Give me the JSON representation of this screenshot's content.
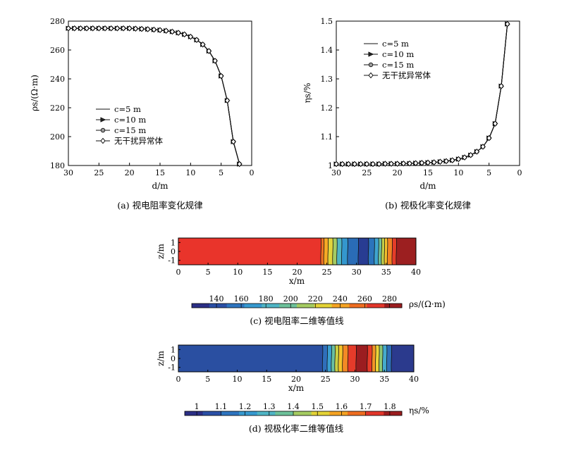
{
  "chart_data": [
    {
      "id": "a",
      "type": "line",
      "caption": "(a) 视电阻率变化规律",
      "xlabel": "d/m",
      "ylabel": "ρs/(Ω·m)",
      "xlim": [
        30,
        0
      ],
      "ylim": [
        180,
        280
      ],
      "xticks": [
        "30",
        "25",
        "20",
        "15",
        "10",
        "5",
        "0"
      ],
      "yticks": [
        "280",
        "260",
        "240",
        "220",
        "200",
        "180"
      ],
      "legend_position": "lower-left",
      "x": [
        30,
        29,
        28,
        27,
        26,
        25,
        24,
        23,
        22,
        21,
        20,
        19,
        18,
        17,
        16,
        15,
        14,
        13,
        12,
        11,
        10,
        9,
        8,
        7,
        6,
        5,
        4,
        3,
        2
      ],
      "series": [
        {
          "name": "c=5 m",
          "values": [
            275,
            275,
            275,
            275,
            275,
            275,
            275,
            275,
            275,
            275,
            275,
            274.8,
            274.6,
            274.4,
            274.1,
            273.8,
            273.3,
            272.7,
            271.9,
            270.8,
            269.2,
            267,
            263.8,
            259.3,
            252.5,
            242,
            225,
            196.5,
            181
          ],
          "marker": "none"
        },
        {
          "name": "c=10 m",
          "values": [
            275,
            275,
            275,
            275,
            275,
            275,
            275,
            275,
            275,
            275,
            275,
            274.8,
            274.6,
            274.4,
            274.1,
            273.8,
            273.3,
            272.7,
            271.9,
            270.8,
            269.2,
            267,
            263.8,
            259.3,
            252.5,
            242,
            225,
            196.5,
            181
          ],
          "marker": "triangle"
        },
        {
          "name": "c=15 m",
          "values": [
            275,
            275,
            275,
            275,
            275,
            275,
            275,
            275,
            275,
            275,
            275,
            274.8,
            274.6,
            274.4,
            274.1,
            273.8,
            273.3,
            272.7,
            271.9,
            270.8,
            269.2,
            267,
            263.8,
            259.3,
            252.5,
            242,
            225,
            196.5,
            181
          ],
          "marker": "circle"
        },
        {
          "name": "无干扰异常体",
          "values": [
            275,
            275,
            275,
            275,
            275,
            275,
            275,
            275,
            275,
            275,
            275,
            274.8,
            274.6,
            274.4,
            274.1,
            273.8,
            273.3,
            272.7,
            271.9,
            270.8,
            269.2,
            267,
            263.8,
            259.3,
            252.5,
            242,
            225,
            196.5,
            181
          ],
          "marker": "diamond"
        }
      ]
    },
    {
      "id": "b",
      "type": "line",
      "caption": "(b) 视极化率变化规律",
      "xlabel": "d/m",
      "ylabel": "ηs/%",
      "xlim": [
        30,
        0
      ],
      "ylim": [
        1,
        1.5
      ],
      "xticks": [
        "30",
        "25",
        "20",
        "15",
        "10",
        "5",
        "0"
      ],
      "yticks": [
        "1.5",
        "1.4",
        "1.3",
        "1.2",
        "1.1",
        "1"
      ],
      "legend_position": "top-left",
      "x": [
        30,
        29,
        28,
        27,
        26,
        25,
        24,
        23,
        22,
        21,
        20,
        19,
        18,
        17,
        16,
        15,
        14,
        13,
        12,
        11,
        10,
        9,
        8,
        7,
        6,
        5,
        4,
        3,
        2
      ],
      "series": [
        {
          "name": "c=5 m",
          "values": [
            1.005,
            1.005,
            1.005,
            1.005,
            1.005,
            1.005,
            1.005,
            1.005,
            1.006,
            1.006,
            1.006,
            1.007,
            1.007,
            1.008,
            1.009,
            1.01,
            1.011,
            1.013,
            1.015,
            1.018,
            1.022,
            1.028,
            1.036,
            1.048,
            1.065,
            1.095,
            1.145,
            1.275,
            1.49
          ],
          "marker": "none"
        },
        {
          "name": "c=10 m",
          "values": [
            1.005,
            1.005,
            1.005,
            1.005,
            1.005,
            1.005,
            1.005,
            1.005,
            1.006,
            1.006,
            1.006,
            1.007,
            1.007,
            1.008,
            1.009,
            1.01,
            1.011,
            1.013,
            1.015,
            1.018,
            1.022,
            1.028,
            1.036,
            1.048,
            1.065,
            1.095,
            1.145,
            1.275,
            1.49
          ],
          "marker": "triangle"
        },
        {
          "name": "c=15 m",
          "values": [
            1.005,
            1.005,
            1.005,
            1.005,
            1.005,
            1.005,
            1.005,
            1.005,
            1.006,
            1.006,
            1.006,
            1.007,
            1.007,
            1.008,
            1.009,
            1.01,
            1.011,
            1.013,
            1.015,
            1.018,
            1.022,
            1.028,
            1.036,
            1.048,
            1.065,
            1.095,
            1.145,
            1.275,
            1.49
          ],
          "marker": "circle"
        },
        {
          "name": "无干扰异常体",
          "values": [
            1.005,
            1.005,
            1.005,
            1.005,
            1.005,
            1.005,
            1.005,
            1.005,
            1.006,
            1.006,
            1.006,
            1.007,
            1.007,
            1.008,
            1.009,
            1.01,
            1.011,
            1.013,
            1.015,
            1.018,
            1.022,
            1.028,
            1.036,
            1.048,
            1.065,
            1.095,
            1.145,
            1.275,
            1.49
          ],
          "marker": "diamond"
        }
      ]
    },
    {
      "id": "c",
      "type": "heatmap",
      "caption": "(c) 视电阻率二维等值线",
      "xlabel": "x/m",
      "ylabel": "z/m",
      "xlim": [
        0,
        40
      ],
      "ylim": [
        -1.5,
        1.5
      ],
      "xticks": [
        "0",
        "5",
        "10",
        "15",
        "20",
        "25",
        "30",
        "35",
        "40"
      ],
      "yticks": [
        "1",
        "0",
        "-1"
      ],
      "colorbar_label": "ρs/(Ω·m)",
      "colorbar_range": [
        120,
        290
      ],
      "colorbar_ticks": [
        "140",
        "160",
        "180",
        "200",
        "220",
        "240",
        "260",
        "280"
      ],
      "colorbar_colors": [
        "#2b2f86",
        "#2a4fa6",
        "#2d74bf",
        "#3699cf",
        "#4fb5c5",
        "#6dc19a",
        "#a5cc62",
        "#e4d336",
        "#f5a323",
        "#ef6d21",
        "#e2362a",
        "#9b1d1f"
      ],
      "bands": [
        {
          "x0": 0,
          "x1": 24,
          "value": 275,
          "color": "#e9342b"
        },
        {
          "x0": 24,
          "x1": 24.5,
          "value": 268,
          "color": "#f07324"
        },
        {
          "x0": 24.5,
          "x1": 25.2,
          "value": 250,
          "color": "#f6a925"
        },
        {
          "x0": 25.2,
          "x1": 26,
          "value": 230,
          "color": "#e1d43c"
        },
        {
          "x0": 26,
          "x1": 26.7,
          "value": 210,
          "color": "#a4cb63"
        },
        {
          "x0": 26.7,
          "x1": 27.5,
          "value": 195,
          "color": "#4fb4c4"
        },
        {
          "x0": 27.5,
          "x1": 28.5,
          "value": 180,
          "color": "#3497ce"
        },
        {
          "x0": 28.5,
          "x1": 30.3,
          "value": 165,
          "color": "#2a6cb6"
        },
        {
          "x0": 30.3,
          "x1": 32,
          "value": 150,
          "color": "#283c92"
        },
        {
          "x0": 32,
          "x1": 33,
          "value": 165,
          "color": "#2b74bc"
        },
        {
          "x0": 33,
          "x1": 33.7,
          "value": 190,
          "color": "#3ea4cf"
        },
        {
          "x0": 33.7,
          "x1": 34.2,
          "value": 210,
          "color": "#6fc09c"
        },
        {
          "x0": 34.2,
          "x1": 34.7,
          "value": 230,
          "color": "#c3cf4a"
        },
        {
          "x0": 34.7,
          "x1": 35.2,
          "value": 245,
          "color": "#f4c02c"
        },
        {
          "x0": 35.2,
          "x1": 36,
          "value": 258,
          "color": "#f28224"
        },
        {
          "x0": 36,
          "x1": 36.7,
          "value": 270,
          "color": "#e53d29"
        },
        {
          "x0": 36.7,
          "x1": 40,
          "value": 285,
          "color": "#9c1f20"
        }
      ]
    },
    {
      "id": "d",
      "type": "heatmap",
      "caption": "(d) 视极化率二维等值线",
      "xlabel": "x/m",
      "ylabel": "z/m",
      "xlim": [
        0,
        40
      ],
      "ylim": [
        -1.5,
        1.5
      ],
      "xticks": [
        "0",
        "5",
        "10",
        "15",
        "20",
        "25",
        "30",
        "35",
        "40"
      ],
      "yticks": [
        "1",
        "0",
        "-1"
      ],
      "colorbar_label": "ηs/%",
      "colorbar_range": [
        0.95,
        1.85
      ],
      "colorbar_ticks": [
        "1",
        "1.1",
        "1.2",
        "1.3",
        "1.4",
        "1.5",
        "1.6",
        "1.7",
        "1.8"
      ],
      "colorbar_colors": [
        "#2b2f86",
        "#2a4fa6",
        "#2d74bf",
        "#3699cf",
        "#4fb5c5",
        "#6dc19a",
        "#a5cc62",
        "#e4d336",
        "#f5a323",
        "#ef6d21",
        "#e2362a",
        "#9b1d1f"
      ],
      "bands": [
        {
          "x0": 0,
          "x1": 24.5,
          "value": 1.0,
          "color": "#2a4fa1"
        },
        {
          "x0": 24.5,
          "x1": 25.3,
          "value": 1.1,
          "color": "#2f6fbb"
        },
        {
          "x0": 25.3,
          "x1": 26,
          "value": 1.2,
          "color": "#3a9fd0"
        },
        {
          "x0": 26,
          "x1": 26.6,
          "value": 1.3,
          "color": "#6ac0a2"
        },
        {
          "x0": 26.6,
          "x1": 27.2,
          "value": 1.4,
          "color": "#c8d045"
        },
        {
          "x0": 27.2,
          "x1": 27.9,
          "value": 1.5,
          "color": "#f5c42b"
        },
        {
          "x0": 27.9,
          "x1": 28.8,
          "value": 1.6,
          "color": "#f38a25"
        },
        {
          "x0": 28.8,
          "x1": 30.2,
          "value": 1.7,
          "color": "#e53b2a"
        },
        {
          "x0": 30.2,
          "x1": 32.1,
          "value": 1.8,
          "color": "#9b1d20"
        },
        {
          "x0": 32.1,
          "x1": 32.9,
          "value": 1.7,
          "color": "#e63a29"
        },
        {
          "x0": 32.9,
          "x1": 33.5,
          "value": 1.6,
          "color": "#f39526"
        },
        {
          "x0": 33.5,
          "x1": 34.1,
          "value": 1.5,
          "color": "#ead43a"
        },
        {
          "x0": 34.1,
          "x1": 34.7,
          "value": 1.4,
          "color": "#8ec673"
        },
        {
          "x0": 34.7,
          "x1": 35.4,
          "value": 1.3,
          "color": "#45abcd"
        },
        {
          "x0": 35.4,
          "x1": 36.2,
          "value": 1.2,
          "color": "#2e6eb8"
        },
        {
          "x0": 36.2,
          "x1": 40,
          "value": 1.05,
          "color": "#2b3a8d"
        }
      ]
    }
  ]
}
